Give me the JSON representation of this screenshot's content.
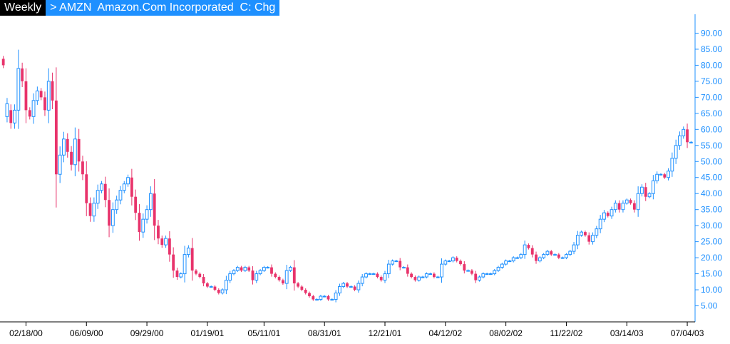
{
  "header": {
    "period": "Weekly",
    "symbol_line": "> AMZN  Amazon.Com Incorporated  C: Chg"
  },
  "chart_data": {
    "type": "candlestick",
    "ylim": [
      0,
      95
    ],
    "y_ticks": [
      {
        "value": 5,
        "label": "5.00"
      },
      {
        "value": 10,
        "label": "10.00"
      },
      {
        "value": 15,
        "label": "15.00"
      },
      {
        "value": 20,
        "label": "20.00"
      },
      {
        "value": 25,
        "label": "25.00"
      },
      {
        "value": 30,
        "label": "30.00"
      },
      {
        "value": 35,
        "label": "35.00"
      },
      {
        "value": 40,
        "label": "40.00"
      },
      {
        "value": 45,
        "label": "45.00"
      },
      {
        "value": 50,
        "label": "50.00"
      },
      {
        "value": 55,
        "label": "55.00"
      },
      {
        "value": 60,
        "label": "60.00"
      },
      {
        "value": 65,
        "label": "65.00"
      },
      {
        "value": 70,
        "label": "70.00"
      },
      {
        "value": 75,
        "label": "75.00"
      },
      {
        "value": 80,
        "label": "80.00"
      },
      {
        "value": 85,
        "label": "85.00"
      },
      {
        "value": 90,
        "label": "90.00"
      }
    ],
    "x_ticks": [
      {
        "index": 6,
        "label": "02/18/00"
      },
      {
        "index": 22,
        "label": "06/09/00"
      },
      {
        "index": 38,
        "label": "09/29/00"
      },
      {
        "index": 54,
        "label": "01/19/01"
      },
      {
        "index": 69,
        "label": "05/11/01"
      },
      {
        "index": 85,
        "label": "08/31/01"
      },
      {
        "index": 101,
        "label": "12/21/01"
      },
      {
        "index": 117,
        "label": "04/12/02"
      },
      {
        "index": 133,
        "label": "08/02/02"
      },
      {
        "index": 149,
        "label": "11/22/02"
      },
      {
        "index": 165,
        "label": "03/14/03"
      },
      {
        "index": 181,
        "label": "07/04/03"
      }
    ],
    "up_color": "#1e90ff",
    "down_color": "#e8336b",
    "highlight_color": "#4caf50",
    "highlight_index": 196,
    "highlight_value": 58,
    "closes": [
      80.0,
      68.0,
      62.0,
      66.0,
      79.0,
      75.0,
      66.0,
      64.0,
      69.0,
      72.0,
      70.0,
      66.0,
      75.0,
      69.0,
      46.0,
      52.0,
      57.0,
      53.0,
      49.0,
      57.0,
      50.0,
      46.0,
      37.0,
      33.0,
      37.0,
      41.0,
      43.0,
      38.0,
      30.0,
      35.0,
      38.0,
      41.0,
      43.0,
      45.0,
      39.0,
      34.0,
      28.0,
      32.0,
      35.0,
      40.0,
      30.0,
      26.0,
      24.0,
      26.0,
      21.0,
      16.0,
      14.0,
      15.0,
      21.0,
      23.0,
      16.0,
      15.0,
      14.0,
      12.0,
      11.0,
      11.0,
      10.0,
      9.0,
      10.0,
      13.0,
      15.0,
      16.0,
      17.0,
      16.0,
      17.0,
      16.0,
      13.0,
      15.0,
      16.0,
      17.0,
      17.0,
      15.0,
      14.0,
      13.0,
      12.0,
      16.0,
      17.0,
      12.0,
      11.0,
      10.0,
      9.0,
      8.0,
      7.0,
      7.0,
      8.0,
      8.0,
      7.0,
      7.0,
      9.0,
      11.0,
      12.0,
      11.0,
      11.0,
      10.0,
      12.0,
      14.0,
      15.0,
      15.0,
      15.0,
      14.0,
      13.0,
      15.0,
      18.0,
      19.0,
      19.0,
      17.0,
      17.0,
      15.0,
      14.0,
      13.0,
      14.0,
      14.0,
      15.0,
      15.0,
      14.0,
      14.0,
      18.0,
      19.0,
      19.0,
      20.0,
      19.0,
      18.0,
      16.0,
      16.0,
      15.0,
      13.0,
      14.0,
      15.0,
      15.0,
      15.0,
      16.0,
      17.0,
      18.0,
      19.0,
      19.0,
      20.0,
      20.0,
      21.0,
      24.0,
      23.0,
      21.0,
      19.0,
      20.0,
      21.0,
      22.0,
      21.0,
      21.0,
      20.0,
      20.0,
      21.0,
      22.0,
      24.0,
      27.0,
      28.0,
      27.0,
      25.0,
      27.0,
      29.0,
      32.0,
      34.0,
      33.0,
      35.0,
      37.0,
      35.0,
      37.0,
      38.0,
      37.0,
      35.0,
      40.0,
      42.0,
      39.0,
      40.0,
      44.0,
      46.0,
      46.0,
      45.0,
      47.0,
      51.0,
      55.0,
      58.0,
      60.0,
      56.0,
      56.0
    ],
    "opens": [
      82.0,
      64.0,
      66.0,
      62.0,
      66.0,
      79.0,
      75.0,
      66.0,
      64.0,
      69.0,
      72.0,
      70.0,
      66.0,
      75.0,
      69.0,
      46.0,
      52.0,
      57.0,
      53.0,
      49.0,
      57.0,
      50.0,
      46.0,
      37.0,
      33.0,
      37.0,
      41.0,
      43.0,
      38.0,
      30.0,
      35.0,
      38.0,
      41.0,
      43.0,
      45.0,
      39.0,
      34.0,
      28.0,
      32.0,
      35.0,
      40.0,
      30.0,
      26.0,
      24.0,
      26.0,
      21.0,
      16.0,
      14.0,
      15.0,
      21.0,
      23.0,
      16.0,
      15.0,
      14.0,
      12.0,
      11.0,
      11.0,
      10.0,
      9.0,
      10.0,
      13.0,
      15.0,
      16.0,
      17.0,
      16.0,
      17.0,
      16.0,
      13.0,
      15.0,
      16.0,
      17.0,
      17.0,
      15.0,
      14.0,
      13.0,
      12.0,
      16.0,
      17.0,
      12.0,
      11.0,
      10.0,
      9.0,
      8.0,
      7.0,
      7.0,
      8.0,
      8.0,
      7.0,
      7.0,
      9.0,
      11.0,
      12.0,
      11.0,
      11.0,
      10.0,
      12.0,
      14.0,
      15.0,
      15.0,
      15.0,
      14.0,
      13.0,
      15.0,
      18.0,
      19.0,
      19.0,
      17.0,
      17.0,
      15.0,
      14.0,
      13.0,
      14.0,
      14.0,
      15.0,
      15.0,
      14.0,
      14.0,
      18.0,
      19.0,
      19.0,
      20.0,
      19.0,
      18.0,
      16.0,
      16.0,
      15.0,
      13.0,
      14.0,
      15.0,
      15.0,
      15.0,
      16.0,
      17.0,
      18.0,
      19.0,
      19.0,
      20.0,
      20.0,
      21.0,
      24.0,
      23.0,
      21.0,
      19.0,
      20.0,
      21.0,
      22.0,
      21.0,
      21.0,
      20.0,
      20.0,
      21.0,
      22.0,
      24.0,
      27.0,
      28.0,
      27.0,
      25.0,
      27.0,
      29.0,
      32.0,
      34.0,
      33.0,
      35.0,
      37.0,
      35.0,
      37.0,
      38.0,
      37.0,
      35.0,
      40.0,
      42.0,
      39.0,
      40.0,
      44.0,
      46.0,
      46.0,
      45.0,
      47.0,
      51.0,
      55.0,
      58.0,
      60.0,
      56.0
    ]
  }
}
